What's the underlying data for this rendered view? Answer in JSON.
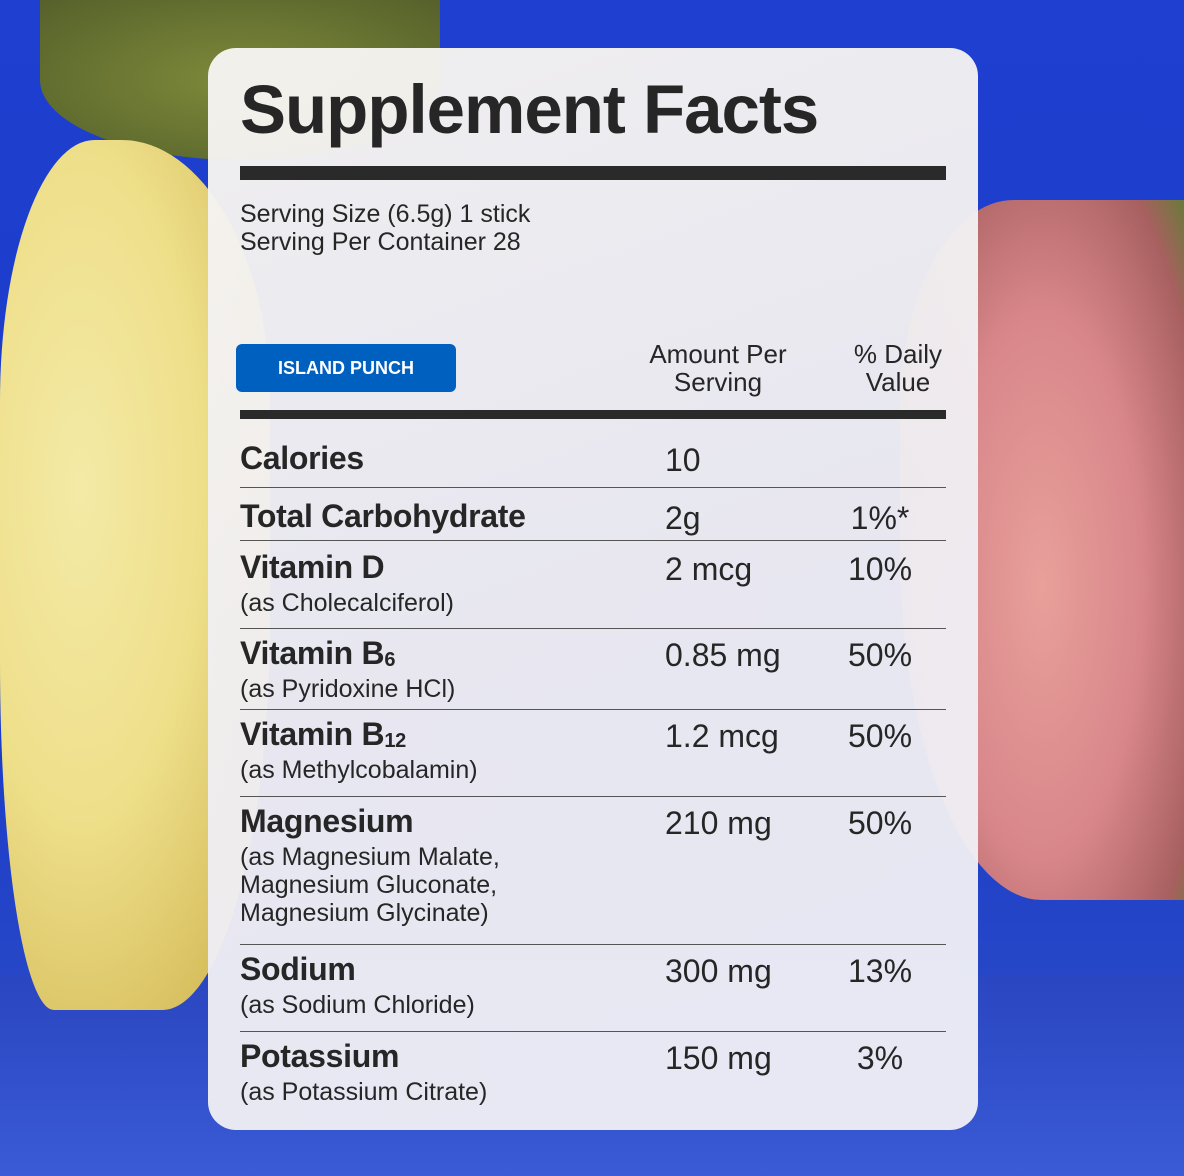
{
  "label": {
    "title": "Supplement Facts",
    "serving_size": "Serving Size (6.5g) 1 stick",
    "servings_per_container": "Serving Per Container 28",
    "flavor_badge": "ISLAND PUNCH",
    "col_amount": [
      "Amount Per",
      "Serving"
    ],
    "col_dv": [
      "% Daily",
      "Value"
    ],
    "rows": [
      {
        "name": "Calories",
        "amount": "10",
        "dv": ""
      },
      {
        "name": "Total Carbohydrate",
        "amount": "2g",
        "dv": "1%*"
      },
      {
        "name": "Vitamin D",
        "source": [
          "(as Cholecalciferol)"
        ],
        "amount": "2 mcg",
        "dv": "10%"
      },
      {
        "name": "Vitamin B",
        "subscript": "6",
        "source": [
          "(as Pyridoxine HCl)"
        ],
        "amount": "0.85 mg",
        "dv": "50%"
      },
      {
        "name": "Vitamin B",
        "subscript": "12",
        "source": [
          "(as Methylcobalamin)"
        ],
        "amount": "1.2 mcg",
        "dv": "50%"
      },
      {
        "name": "Magnesium",
        "source": [
          "(as Magnesium Malate,",
          "Magnesium Gluconate,",
          "Magnesium Glycinate)"
        ],
        "amount": "210 mg",
        "dv": "50%"
      },
      {
        "name": "Sodium",
        "source": [
          "(as Sodium Chloride)"
        ],
        "amount": "300 mg",
        "dv": "13%"
      },
      {
        "name": "Potassium",
        "source": [
          "(as Potassium Citrate)"
        ],
        "amount": "150 mg",
        "dv": "3%"
      }
    ]
  },
  "colors": {
    "badge": "#0060c0",
    "background": "#1f3fd0",
    "text": "#262626"
  }
}
